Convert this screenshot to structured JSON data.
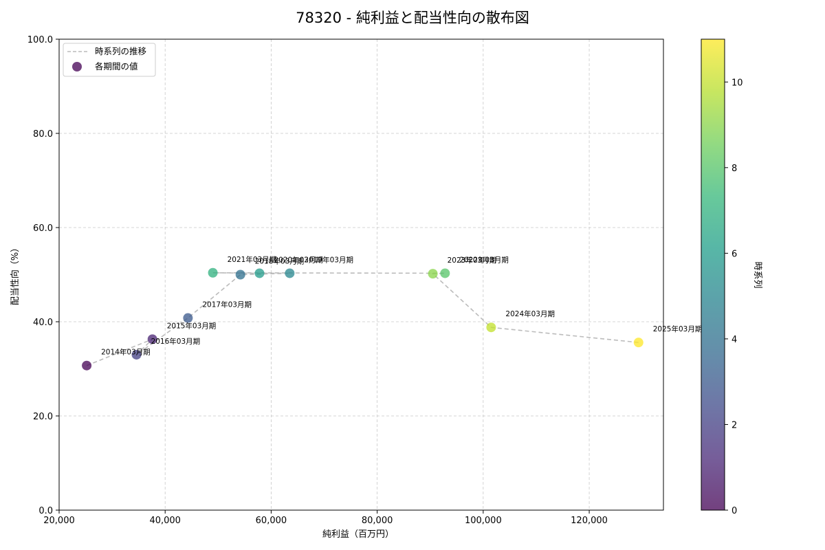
{
  "chart_data": {
    "type": "scatter",
    "title": "78320 - 純利益と配当性向の散布図",
    "xlabel": "純利益（百万円）",
    "ylabel": "配当性向（%）",
    "xlim": [
      20000,
      134000
    ],
    "ylim": [
      0,
      100
    ],
    "x_ticks": [
      20000,
      40000,
      60000,
      80000,
      100000,
      120000
    ],
    "x_tick_labels": [
      "20,000",
      "40,000",
      "60,000",
      "80,000",
      "100,000",
      "120,000"
    ],
    "y_ticks": [
      0,
      20,
      40,
      60,
      80,
      100
    ],
    "y_tick_labels": [
      "0.0",
      "20.0",
      "40.0",
      "60.0",
      "80.0",
      "100.0"
    ],
    "grid": true,
    "legend": {
      "position": "top-left",
      "line_label": "時系列の推移",
      "marker_label": "各期間の値"
    },
    "colorbar": {
      "label": "時系列",
      "range": [
        0,
        11
      ],
      "ticks": [
        0,
        2,
        4,
        6,
        8,
        10
      ],
      "tick_labels": [
        "0",
        "2",
        "4",
        "6",
        "8",
        "10"
      ],
      "colormap": "viridis"
    },
    "points": [
      {
        "label": "2014年03月期",
        "x": 25200,
        "y": 30.7,
        "t": 0
      },
      {
        "label": "2015年03月期",
        "x": 37600,
        "y": 36.3,
        "t": 1
      },
      {
        "label": "2016年03月期",
        "x": 34600,
        "y": 33.0,
        "t": 2
      },
      {
        "label": "2017年03月期",
        "x": 44300,
        "y": 40.8,
        "t": 3
      },
      {
        "label": "2018年03月期",
        "x": 54200,
        "y": 50.0,
        "t": 4
      },
      {
        "label": "2019年03月期",
        "x": 63500,
        "y": 50.3,
        "t": 5
      },
      {
        "label": "2020年03月期",
        "x": 57800,
        "y": 50.3,
        "t": 6
      },
      {
        "label": "2021年03月期",
        "x": 49000,
        "y": 50.4,
        "t": 7
      },
      {
        "label": "2022年03月期",
        "x": 92800,
        "y": 50.3,
        "t": 8
      },
      {
        "label": "2023年03月期",
        "x": 90500,
        "y": 50.2,
        "t": 9
      },
      {
        "label": "2024年03月期",
        "x": 101500,
        "y": 38.8,
        "t": 10
      },
      {
        "label": "2025年03月期",
        "x": 129300,
        "y": 35.6,
        "t": 11
      }
    ]
  },
  "colors": {
    "line": "#bbbbbb",
    "grid": "#c8c8c8",
    "viridis_stops": [
      "#440154",
      "#482878",
      "#3e4989",
      "#31688e",
      "#26828e",
      "#1f9e89",
      "#35b779",
      "#6ece58",
      "#b5de2b",
      "#fde725"
    ]
  }
}
